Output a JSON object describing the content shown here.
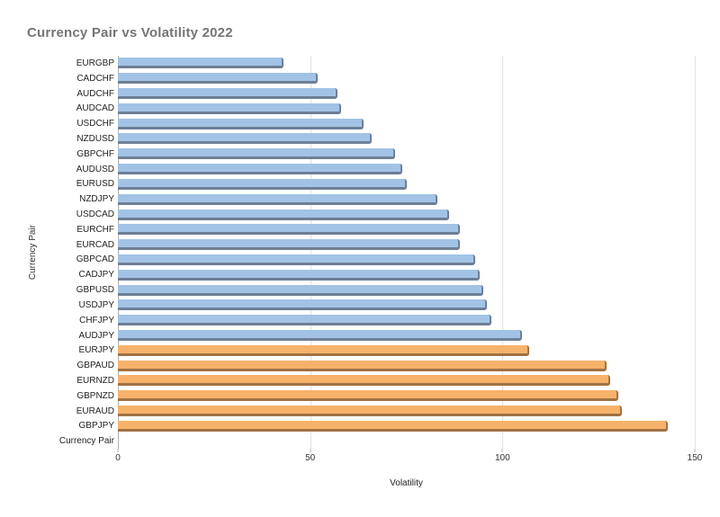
{
  "chart_data": {
    "type": "bar",
    "orientation": "horizontal",
    "title": "Currency Pair vs Volatility 2022",
    "xlabel": "Volatility",
    "ylabel": "Currency Pair",
    "xlim": [
      0,
      150
    ],
    "xticks": [
      0,
      50,
      100,
      150
    ],
    "grid": true,
    "legend": false,
    "colors": {
      "blue": {
        "fill": "#a2c3e5",
        "edge": "#6e7f96"
      },
      "orange": {
        "fill": "#f6b26b",
        "edge": "#a07243"
      }
    },
    "bars": [
      {
        "label": "EURGBP",
        "value": 43,
        "color": "blue"
      },
      {
        "label": "CADCHF",
        "value": 52,
        "color": "blue"
      },
      {
        "label": "AUDCHF",
        "value": 57,
        "color": "blue"
      },
      {
        "label": "AUDCAD",
        "value": 58,
        "color": "blue"
      },
      {
        "label": "USDCHF",
        "value": 64,
        "color": "blue"
      },
      {
        "label": "NZDUSD",
        "value": 66,
        "color": "blue"
      },
      {
        "label": "GBPCHF",
        "value": 72,
        "color": "blue"
      },
      {
        "label": "AUDUSD",
        "value": 74,
        "color": "blue"
      },
      {
        "label": "EURUSD",
        "value": 75,
        "color": "blue"
      },
      {
        "label": "NZDJPY",
        "value": 83,
        "color": "blue"
      },
      {
        "label": "USDCAD",
        "value": 86,
        "color": "blue"
      },
      {
        "label": "EURCHF",
        "value": 89,
        "color": "blue"
      },
      {
        "label": "EURCAD",
        "value": 89,
        "color": "blue"
      },
      {
        "label": "GBPCAD",
        "value": 93,
        "color": "blue"
      },
      {
        "label": "CADJPY",
        "value": 94,
        "color": "blue"
      },
      {
        "label": "GBPUSD",
        "value": 95,
        "color": "blue"
      },
      {
        "label": "USDJPY",
        "value": 96,
        "color": "blue"
      },
      {
        "label": "CHFJPY",
        "value": 97,
        "color": "blue"
      },
      {
        "label": "AUDJPY",
        "value": 105,
        "color": "blue"
      },
      {
        "label": "EURJPY",
        "value": 107,
        "color": "orange"
      },
      {
        "label": "GBPAUD",
        "value": 127,
        "color": "orange"
      },
      {
        "label": "EURNZD",
        "value": 128,
        "color": "orange"
      },
      {
        "label": "GBPNZD",
        "value": 130,
        "color": "orange"
      },
      {
        "label": "EURAUD",
        "value": 131,
        "color": "orange"
      },
      {
        "label": "GBPJPY",
        "value": 143,
        "color": "orange"
      },
      {
        "label": "Currency Pair",
        "value": 0,
        "color": "blue"
      }
    ]
  }
}
